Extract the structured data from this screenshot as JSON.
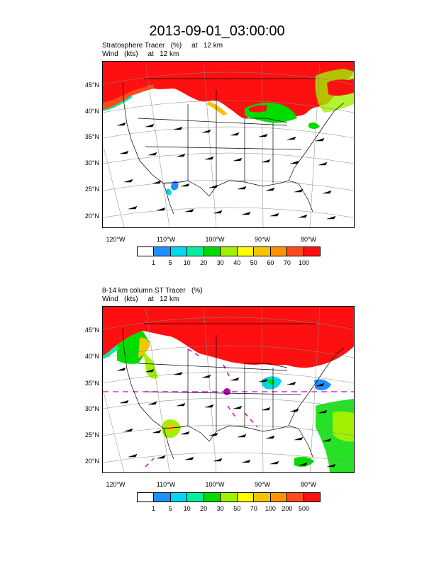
{
  "title": "2013-09-01_03:00:00",
  "panel1": {
    "title_line1": "Stratosphere Tracer   (%)     at   12 km",
    "title_line2": "Wind   (kts)     at   12 km",
    "lat_labels": [
      "45°N",
      "40°N",
      "35°N",
      "30°N",
      "25°N",
      "20°N"
    ],
    "lon_labels": [
      "120°W",
      "110°W",
      "100°W",
      "90°W",
      "80°W"
    ],
    "colorbar": {
      "colors": [
        "#ffffff",
        "#1e90ff",
        "#00d8f0",
        "#00f0a0",
        "#00dc00",
        "#a0f000",
        "#ffff00",
        "#f5c400",
        "#ff9200",
        "#ff4a1c",
        "#ff1010"
      ],
      "labels": [
        "1",
        "5",
        "10",
        "20",
        "30",
        "40",
        "50",
        "60",
        "70",
        "100"
      ]
    }
  },
  "panel2": {
    "title_line1": "8-14 km column ST Tracer   (%)",
    "title_line2": "Wind   (kts)     at   12 km",
    "lat_labels": [
      "45°N",
      "40°N",
      "35°N",
      "30°N",
      "25°N",
      "20°N"
    ],
    "lon_labels": [
      "120°W",
      "110°W",
      "100°W",
      "90°W",
      "80°W"
    ],
    "colorbar": {
      "colors": [
        "#ffffff",
        "#1e90ff",
        "#00d8f0",
        "#00f0a0",
        "#00dc00",
        "#a0f000",
        "#ffff00",
        "#f5c400",
        "#ff9200",
        "#ff4a1c",
        "#ff1010"
      ],
      "labels": [
        "1",
        "5",
        "10",
        "20",
        "30",
        "50",
        "70",
        "100",
        "200",
        "500"
      ]
    }
  }
}
